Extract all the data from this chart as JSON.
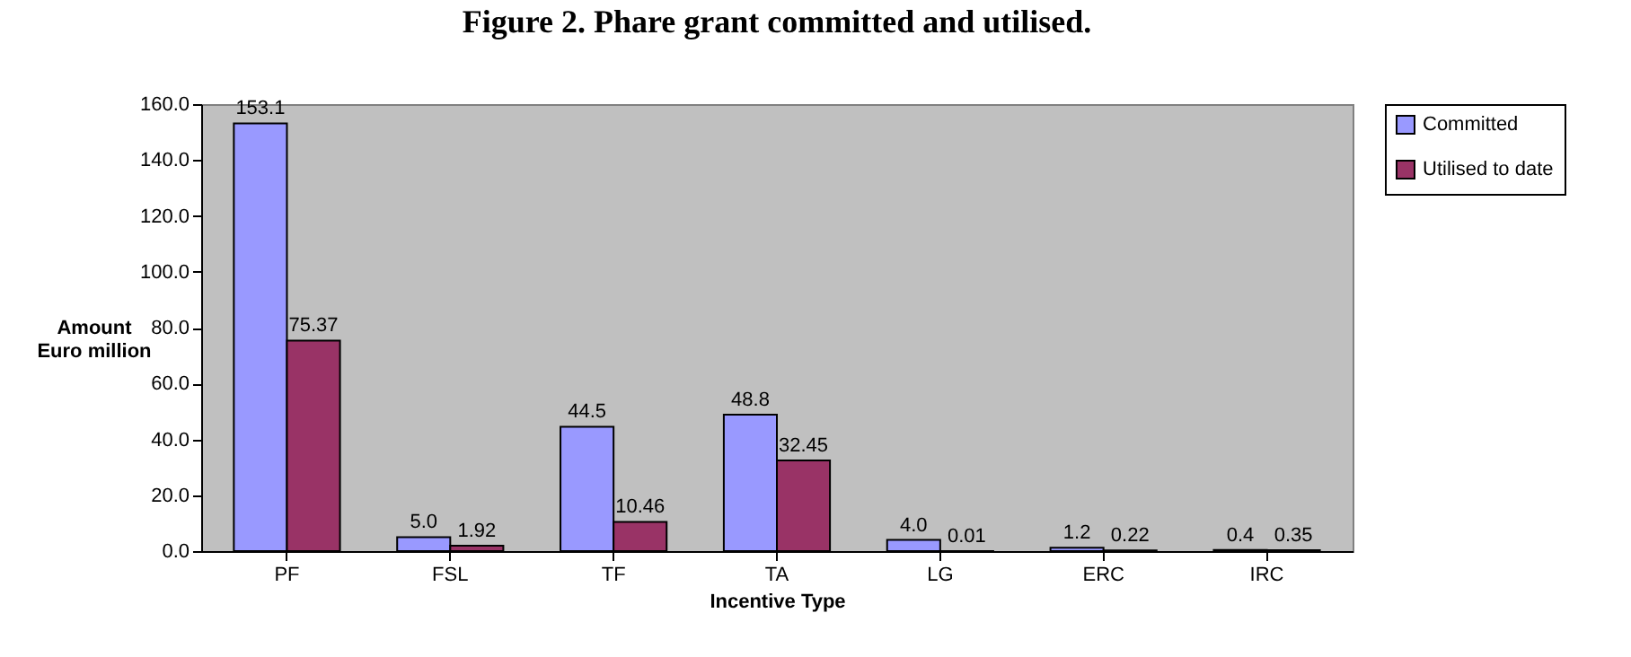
{
  "chart_data": {
    "type": "bar",
    "title": "Figure 2.  Phare grant committed and utilised.",
    "xlabel": "Incentive Type",
    "ylabel": "Amount\nEuro million",
    "categories": [
      "PF",
      "FSL",
      "TF",
      "TA",
      "LG",
      "ERC",
      "IRC"
    ],
    "series": [
      {
        "name": "Committed",
        "color": "#9999ff",
        "values": [
          153.1,
          5.0,
          44.5,
          48.8,
          4.0,
          1.2,
          0.4
        ],
        "value_labels": [
          "153.1",
          "5.0",
          "44.5",
          "48.8",
          "4.0",
          "1.2",
          "0.4"
        ]
      },
      {
        "name": "Utilised to date",
        "color": "#993366",
        "values": [
          75.37,
          1.92,
          10.46,
          32.45,
          0.01,
          0.22,
          0.35
        ],
        "value_labels": [
          "75.37",
          "1.92",
          "10.46",
          "32.45",
          "0.01",
          "0.22",
          "0.35"
        ]
      }
    ],
    "ylim": [
      0,
      160
    ],
    "yticks": [
      {
        "value": 0,
        "label": "0.0"
      },
      {
        "value": 20,
        "label": "20.0"
      },
      {
        "value": 40,
        "label": "40.0"
      },
      {
        "value": 60,
        "label": "60.0"
      },
      {
        "value": 80,
        "label": "80.0"
      },
      {
        "value": 100,
        "label": "100.0"
      },
      {
        "value": 120,
        "label": "120.0"
      },
      {
        "value": 140,
        "label": "140.0"
      },
      {
        "value": 160,
        "label": "160.0"
      }
    ],
    "grid": false,
    "legend": "right"
  }
}
